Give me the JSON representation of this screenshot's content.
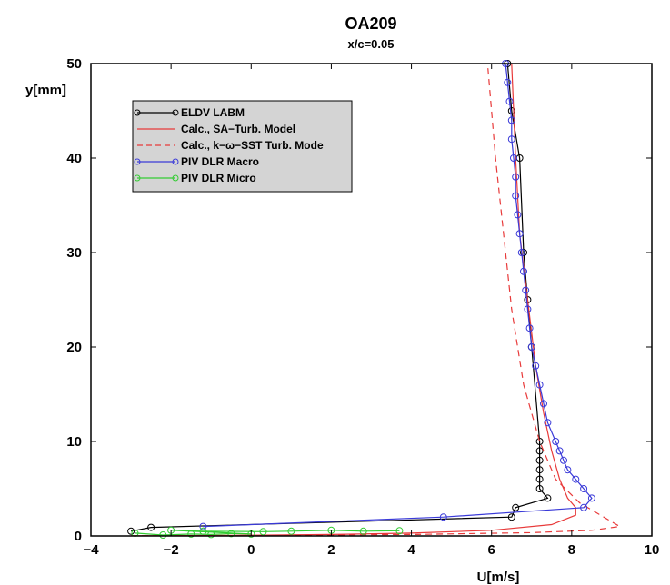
{
  "chart_data": {
    "type": "line",
    "title": "OA209",
    "subtitle": "x/c=0.05",
    "xlabel": "U[m/s]",
    "ylabel": "y[mm]",
    "xlim": [
      -4,
      10
    ],
    "ylim": [
      0,
      50
    ],
    "xticks": [
      "−4",
      "−2",
      "0",
      "2",
      "4",
      "6",
      "8",
      "10"
    ],
    "xtick_values": [
      -4,
      -2,
      0,
      2,
      4,
      6,
      8,
      10
    ],
    "yticks": [
      "0",
      "10",
      "20",
      "30",
      "40",
      "50"
    ],
    "ytick_values": [
      0,
      10,
      20,
      30,
      40,
      50
    ],
    "grid": false,
    "legend_position": "top-left",
    "series": [
      {
        "name": "ELDV LABM",
        "color": "#000000",
        "style": "solid-markers",
        "points": [
          [
            -3.0,
            0.5
          ],
          [
            -2.5,
            0.9
          ],
          [
            6.5,
            2.0
          ],
          [
            6.6,
            3.0
          ],
          [
            7.4,
            4.0
          ],
          [
            7.2,
            5.0
          ],
          [
            7.2,
            6.0
          ],
          [
            7.2,
            7.0
          ],
          [
            7.2,
            8.0
          ],
          [
            7.2,
            9.0
          ],
          [
            7.2,
            10.0
          ],
          [
            7.0,
            20.0
          ],
          [
            6.9,
            25.0
          ],
          [
            6.8,
            30.0
          ],
          [
            6.7,
            40.0
          ],
          [
            6.5,
            45.0
          ],
          [
            6.4,
            50.0
          ]
        ]
      },
      {
        "name": "Calc., SA−Turb. Model",
        "color": "#e83a3a",
        "style": "solid",
        "points": [
          [
            -3.0,
            0.02
          ],
          [
            -1.0,
            0.05
          ],
          [
            0.0,
            0.08
          ],
          [
            2.0,
            0.15
          ],
          [
            4.0,
            0.3
          ],
          [
            6.0,
            0.6
          ],
          [
            7.5,
            1.2
          ],
          [
            8.1,
            2.2
          ],
          [
            8.1,
            3.0
          ],
          [
            7.9,
            4.0
          ],
          [
            7.7,
            6.0
          ],
          [
            7.5,
            9.0
          ],
          [
            7.3,
            13.0
          ],
          [
            7.1,
            18.0
          ],
          [
            6.9,
            25.0
          ],
          [
            6.7,
            32.0
          ],
          [
            6.6,
            40.0
          ],
          [
            6.5,
            50.0
          ]
        ]
      },
      {
        "name": "Calc., k−ω−SST Turb. Mode",
        "color": "#e83a3a",
        "style": "dashed",
        "points": [
          [
            -3.0,
            0.02
          ],
          [
            0.0,
            0.05
          ],
          [
            4.0,
            0.15
          ],
          [
            7.0,
            0.35
          ],
          [
            8.5,
            0.6
          ],
          [
            9.2,
            1.0
          ],
          [
            8.8,
            2.0
          ],
          [
            8.2,
            3.5
          ],
          [
            7.6,
            6.0
          ],
          [
            7.2,
            10.0
          ],
          [
            6.8,
            16.0
          ],
          [
            6.5,
            24.0
          ],
          [
            6.3,
            32.0
          ],
          [
            6.1,
            40.0
          ],
          [
            5.9,
            50.0
          ]
        ]
      },
      {
        "name": "PIV DLR Macro",
        "color": "#3a3ad8",
        "style": "solid-markers",
        "points": [
          [
            -1.2,
            1.0
          ],
          [
            4.8,
            2.0
          ],
          [
            8.3,
            3.0
          ],
          [
            8.5,
            4.0
          ],
          [
            8.3,
            5.0
          ],
          [
            8.1,
            6.0
          ],
          [
            7.9,
            7.0
          ],
          [
            7.8,
            8.0
          ],
          [
            7.7,
            9.0
          ],
          [
            7.6,
            10.0
          ],
          [
            7.4,
            12.0
          ],
          [
            7.3,
            14.0
          ],
          [
            7.2,
            16.0
          ],
          [
            7.1,
            18.0
          ],
          [
            7.0,
            20.0
          ],
          [
            6.95,
            22.0
          ],
          [
            6.9,
            24.0
          ],
          [
            6.85,
            26.0
          ],
          [
            6.8,
            28.0
          ],
          [
            6.75,
            30.0
          ],
          [
            6.7,
            32.0
          ],
          [
            6.65,
            34.0
          ],
          [
            6.6,
            36.0
          ],
          [
            6.6,
            38.0
          ],
          [
            6.55,
            40.0
          ],
          [
            6.5,
            42.0
          ],
          [
            6.5,
            44.0
          ],
          [
            6.45,
            46.0
          ],
          [
            6.4,
            48.0
          ],
          [
            6.35,
            50.0
          ]
        ]
      },
      {
        "name": "PIV DLR Micro",
        "color": "#33cc33",
        "style": "solid-markers",
        "points": [
          [
            -2.9,
            0.3
          ],
          [
            -2.2,
            0.1
          ],
          [
            -1.5,
            0.2
          ],
          [
            -1.0,
            0.15
          ],
          [
            -0.5,
            0.25
          ],
          [
            0.0,
            0.2
          ],
          [
            -2.0,
            0.6
          ],
          [
            -1.2,
            0.5
          ],
          [
            0.3,
            0.45
          ],
          [
            1.0,
            0.5
          ],
          [
            2.0,
            0.6
          ],
          [
            2.8,
            0.5
          ],
          [
            3.7,
            0.55
          ]
        ]
      }
    ]
  }
}
